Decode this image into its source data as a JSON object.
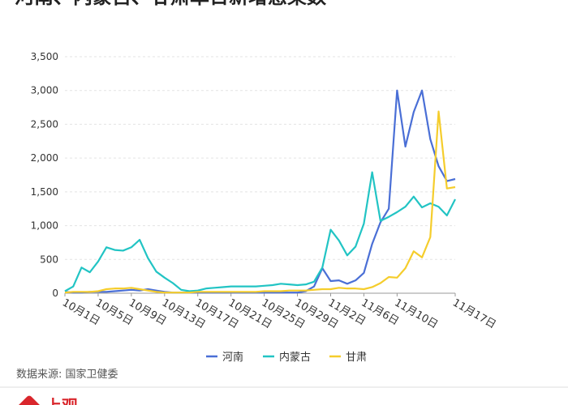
{
  "chart_data": {
    "type": "line",
    "title": "河南、内蒙古、甘肃单日新增感染数",
    "categories": [
      "10月1日",
      null,
      null,
      null,
      "10月5日",
      null,
      null,
      null,
      "10月9日",
      null,
      null,
      null,
      "10月13日",
      null,
      null,
      null,
      "10月17日",
      null,
      null,
      null,
      "10月21日",
      null,
      null,
      null,
      "10月25日",
      null,
      null,
      null,
      "10月29日",
      null,
      null,
      null,
      "11月2日",
      null,
      null,
      null,
      "11月6日",
      null,
      null,
      null,
      "11月10日",
      null,
      null,
      null,
      null,
      null,
      null,
      "11月17日"
    ],
    "series": [
      {
        "name": "河南",
        "color": "#4a6fd6",
        "values": [
          20,
          10,
          10,
          20,
          20,
          20,
          30,
          40,
          50,
          40,
          60,
          40,
          20,
          10,
          10,
          10,
          10,
          10,
          10,
          10,
          10,
          10,
          10,
          10,
          10,
          10,
          10,
          10,
          10,
          30,
          100,
          370,
          180,
          190,
          140,
          190,
          300,
          730,
          1050,
          1250,
          3000,
          2170,
          2680,
          3000,
          2280,
          1880,
          1660,
          1690
        ]
      },
      {
        "name": "内蒙古",
        "color": "#22c4c4",
        "values": [
          30,
          100,
          380,
          310,
          470,
          680,
          640,
          630,
          680,
          790,
          520,
          320,
          230,
          150,
          50,
          30,
          40,
          70,
          80,
          90,
          100,
          100,
          100,
          100,
          110,
          120,
          140,
          130,
          120,
          130,
          170,
          380,
          940,
          780,
          560,
          690,
          1030,
          1790,
          1070,
          1130,
          1200,
          1280,
          1430,
          1270,
          1330,
          1280,
          1150,
          1390
        ]
      },
      {
        "name": "甘肃",
        "color": "#f5cd2c",
        "values": [
          10,
          20,
          20,
          20,
          30,
          60,
          70,
          70,
          80,
          60,
          40,
          20,
          10,
          10,
          10,
          10,
          20,
          20,
          20,
          20,
          20,
          20,
          20,
          20,
          30,
          30,
          30,
          40,
          40,
          40,
          50,
          60,
          60,
          80,
          70,
          70,
          60,
          90,
          150,
          240,
          230,
          370,
          620,
          530,
          830,
          2690,
          1550,
          1570
        ]
      }
    ],
    "ylim": [
      0,
      3500
    ],
    "yticks": [
      0,
      500,
      {
        "value": 1000,
        "label": "1,000"
      },
      {
        "value": 1500,
        "label": "1,500"
      },
      {
        "value": 2000,
        "label": "2,000"
      },
      {
        "value": 2500,
        "label": "2,500"
      },
      {
        "value": 3000,
        "label": "3,000"
      },
      {
        "value": 3500,
        "label": "3,500"
      }
    ],
    "grid": true,
    "legend": "bottom",
    "source": "数据来源: 国家卫健委",
    "logo": "上观"
  }
}
